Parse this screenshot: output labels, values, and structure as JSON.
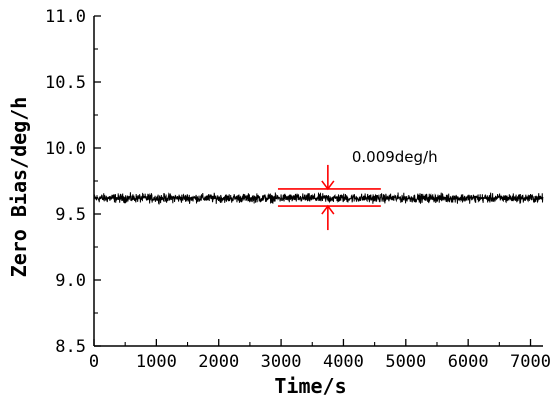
{
  "chart_data": {
    "type": "line",
    "xlabel": "Time/s",
    "ylabel": "Zero Bias/deg/h",
    "xlim": [
      0,
      7200
    ],
    "ylim": [
      8.5,
      11.0
    ],
    "x_ticks": [
      0,
      1000,
      2000,
      3000,
      4000,
      5000,
      6000,
      7000
    ],
    "x_tick_labels": [
      "0",
      "1000",
      "2000",
      "3000",
      "4000",
      "5000",
      "6000",
      "7000"
    ],
    "y_ticks": [
      8.5,
      9.0,
      9.5,
      10.0,
      10.5,
      11.0
    ],
    "y_tick_labels": [
      "8.5",
      "9.0",
      "9.5",
      "10.0",
      "10.5",
      "11.0"
    ],
    "grid": false,
    "series": [
      {
        "color": "#000000",
        "x_start": 0,
        "x_end": 7200,
        "mean": 9.62,
        "band": [
          9.57,
          9.67
        ]
      }
    ],
    "annotation": {
      "text": "0.009deg/h",
      "color": "#ff0000",
      "x_range": [
        2950,
        4600
      ],
      "y_range": [
        9.56,
        9.69
      ],
      "arrow_x": 3750
    }
  }
}
